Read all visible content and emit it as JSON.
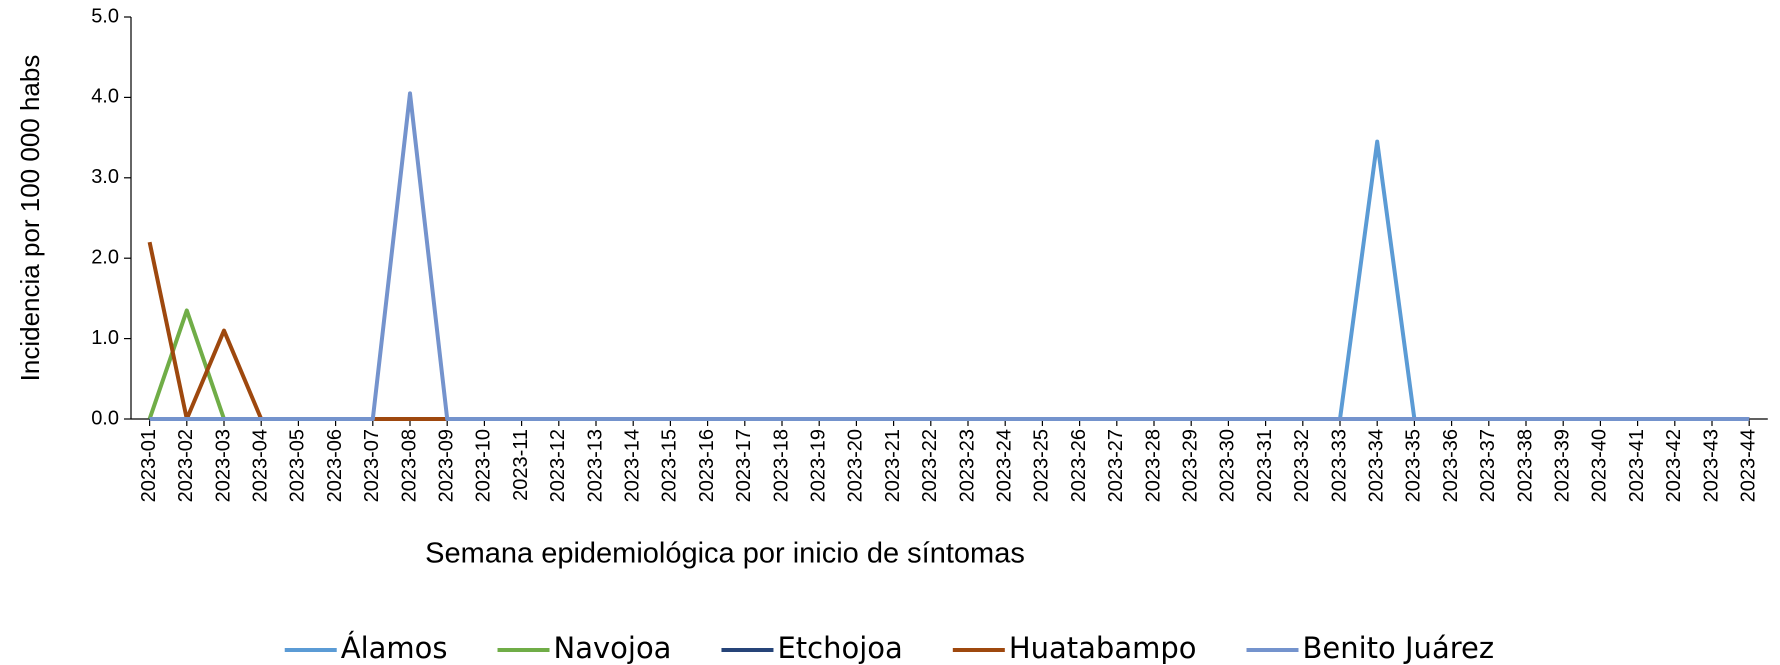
{
  "chart_data": {
    "type": "line",
    "x_label": "Semana epidemiológica por inicio de síntomas",
    "y_label": "Incidencia por 100 000 habs",
    "categories": [
      "2023-01",
      "2023-02",
      "2023-03",
      "2023-04",
      "2023-05",
      "2023-06",
      "2023-07",
      "2023-08",
      "2023-09",
      "2023-10",
      "2023-11",
      "2023-12",
      "2023-13",
      "2023-14",
      "2023-15",
      "2023-16",
      "2023-17",
      "2023-18",
      "2023-19",
      "2023-20",
      "2023-21",
      "2023-22",
      "2023-23",
      "2023-24",
      "2023-25",
      "2023-26",
      "2023-27",
      "2023-28",
      "2023-29",
      "2023-30",
      "2023-31",
      "2023-32",
      "2023-33",
      "2023-34",
      "2023-35",
      "2023-36",
      "2023-37",
      "2023-38",
      "2023-39",
      "2023-40",
      "2023-41",
      "2023-42",
      "2023-43",
      "2023-44"
    ],
    "series": [
      {
        "name": "Álamos",
        "color": "#5b9bd5",
        "values": [
          0,
          0,
          0,
          0,
          0,
          0,
          0,
          0,
          0,
          0,
          0,
          0,
          0,
          0,
          0,
          0,
          0,
          0,
          0,
          0,
          0,
          0,
          0,
          0,
          0,
          0,
          0,
          0,
          0,
          0,
          0,
          0,
          0,
          3.45,
          0,
          0,
          0,
          0,
          0,
          0,
          0,
          0,
          0,
          0
        ]
      },
      {
        "name": "Navojoa",
        "color": "#70ad47",
        "values": [
          0,
          1.35,
          0,
          0,
          0,
          0,
          0,
          0,
          0,
          0,
          0,
          0,
          0,
          0,
          0,
          0,
          0,
          0,
          0,
          0,
          0,
          0,
          0,
          0,
          0,
          0,
          0,
          0,
          0,
          0,
          0,
          0,
          0,
          0,
          0,
          0,
          0,
          0,
          0,
          0,
          0,
          0,
          0,
          0
        ]
      },
      {
        "name": "Etchojoa",
        "color": "#264478",
        "values": [
          0,
          0,
          0,
          0,
          0,
          0,
          0,
          0,
          0,
          0,
          0,
          0,
          0,
          0,
          0,
          0,
          0,
          0,
          0,
          0,
          0,
          0,
          0,
          0,
          0,
          0,
          0,
          0,
          0,
          0,
          0,
          0,
          0,
          0,
          0,
          0,
          0,
          0,
          0,
          0,
          0,
          0,
          0,
          0
        ]
      },
      {
        "name": "Huatabampo",
        "color": "#9e480e",
        "values": [
          2.2,
          0,
          1.1,
          0,
          0,
          0,
          0,
          0,
          0,
          0,
          0,
          0,
          0,
          0,
          0,
          0,
          0,
          0,
          0,
          0,
          0,
          0,
          0,
          0,
          0,
          0,
          0,
          0,
          0,
          0,
          0,
          0,
          0,
          0,
          0,
          0,
          0,
          0,
          0,
          0,
          0,
          0,
          0,
          0
        ]
      },
      {
        "name": "Benito Juárez",
        "color": "#7493cd",
        "values": [
          0,
          0,
          0,
          0,
          0,
          0,
          0,
          4.05,
          0,
          0,
          0,
          0,
          0,
          0,
          0,
          0,
          0,
          0,
          0,
          0,
          0,
          0,
          0,
          0,
          0,
          0,
          0,
          0,
          0,
          0,
          0,
          0,
          0,
          0,
          0,
          0,
          0,
          0,
          0,
          0,
          0,
          0,
          0,
          0
        ]
      }
    ],
    "ylim": [
      0,
      5
    ],
    "yticks": [
      {
        "value": 0,
        "label": "0.0"
      },
      {
        "value": 1,
        "label": "1.0"
      },
      {
        "value": 2,
        "label": "2.0"
      },
      {
        "value": 3,
        "label": "3.0"
      },
      {
        "value": 4,
        "label": "4.0"
      },
      {
        "value": 5,
        "label": "5.0"
      }
    ],
    "legend": "bottom"
  }
}
